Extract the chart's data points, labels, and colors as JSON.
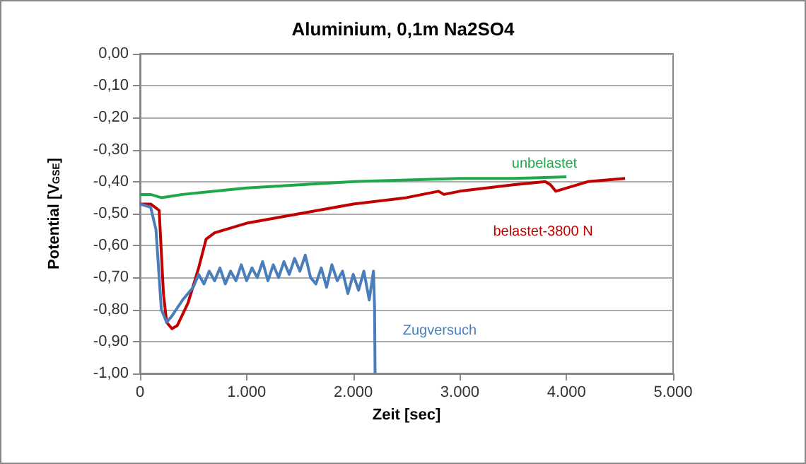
{
  "chart_data": {
    "type": "line",
    "title": "Aluminium, 0,1m Na2SO4",
    "xlabel": "Zeit [sec]",
    "ylabel": "Potential [V$_{GSE}$]",
    "xlim": [
      0,
      5000
    ],
    "xticks": [
      0,
      {
        "value": 1000,
        "label": "1.000"
      },
      {
        "value": 2000,
        "label": "2.000"
      },
      {
        "value": 3000,
        "label": "3.000"
      },
      {
        "value": 4000,
        "label": "4.000"
      },
      {
        "value": 5000,
        "label": "5.000"
      }
    ],
    "ylim": [
      -1,
      0
    ],
    "yticks": [
      {
        "value": -1,
        "label": "-1,00"
      },
      {
        "value": -0.9,
        "label": "-0,90"
      },
      {
        "value": -0.8,
        "label": "-0,80"
      },
      {
        "value": -0.7,
        "label": "-0,70"
      },
      {
        "value": -0.6,
        "label": "-0,60"
      },
      {
        "value": -0.5,
        "label": "-0,50"
      },
      {
        "value": -0.4,
        "label": "-0,40"
      },
      {
        "value": -0.3,
        "label": "-0,30"
      },
      {
        "value": -0.2,
        "label": "-0,20"
      },
      {
        "value": -0.1,
        "label": "-0,10"
      },
      {
        "value": 0,
        "label": "0,00"
      }
    ],
    "grid": "y",
    "marker": "none",
    "line_style": "solid",
    "series": [
      {
        "name": "belastet-3800 N",
        "color": "#c00000",
        "x": [
          0,
          100,
          180,
          220,
          250,
          300,
          350,
          450,
          550,
          620,
          700,
          1000,
          1500,
          2000,
          2500,
          2800,
          2850,
          3000,
          3500,
          3800,
          3850,
          3900,
          4000,
          4200,
          4550
        ],
        "values": [
          -0.47,
          -0.47,
          -0.49,
          -0.75,
          -0.84,
          -0.86,
          -0.85,
          -0.78,
          -0.67,
          -0.58,
          -0.56,
          -0.53,
          -0.5,
          -0.47,
          -0.45,
          -0.43,
          -0.44,
          -0.43,
          -0.41,
          -0.4,
          -0.41,
          -0.43,
          -0.42,
          -0.4,
          -0.39
        ]
      },
      {
        "name": "Zugversuch",
        "color": "#4a7ebb",
        "x": [
          0,
          100,
          150,
          200,
          250,
          300,
          400,
          500,
          550,
          600,
          650,
          700,
          750,
          800,
          850,
          900,
          950,
          1000,
          1050,
          1100,
          1150,
          1200,
          1250,
          1300,
          1350,
          1400,
          1450,
          1500,
          1550,
          1600,
          1650,
          1700,
          1750,
          1800,
          1850,
          1900,
          1950,
          2000,
          2050,
          2100,
          2150,
          2190,
          2200,
          2205
        ],
        "values": [
          -0.47,
          -0.48,
          -0.55,
          -0.8,
          -0.84,
          -0.82,
          -0.77,
          -0.73,
          -0.69,
          -0.72,
          -0.68,
          -0.71,
          -0.67,
          -0.72,
          -0.68,
          -0.71,
          -0.66,
          -0.71,
          -0.67,
          -0.7,
          -0.65,
          -0.71,
          -0.66,
          -0.7,
          -0.65,
          -0.69,
          -0.64,
          -0.68,
          -0.63,
          -0.7,
          -0.72,
          -0.67,
          -0.73,
          -0.66,
          -0.71,
          -0.68,
          -0.75,
          -0.69,
          -0.74,
          -0.68,
          -0.77,
          -0.68,
          -0.79,
          -1.0
        ]
      },
      {
        "name": "unbelastet",
        "color": "#1fa84a",
        "x": [
          0,
          100,
          200,
          400,
          700,
          1000,
          1500,
          2000,
          2500,
          3000,
          3500,
          4000
        ],
        "values": [
          -0.44,
          -0.44,
          -0.45,
          -0.44,
          -0.43,
          -0.42,
          -0.41,
          -0.4,
          -0.395,
          -0.39,
          -0.39,
          -0.385
        ]
      }
    ]
  }
}
